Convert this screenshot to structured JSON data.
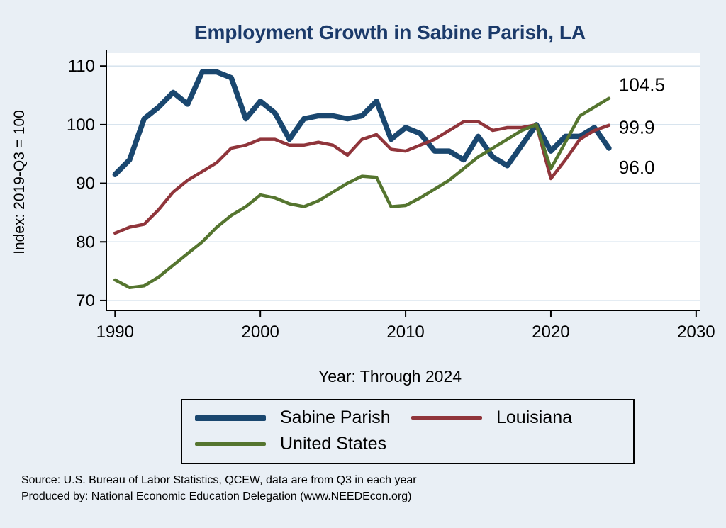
{
  "chart_data": {
    "type": "line",
    "title": "Employment Growth in Sabine Parish, LA",
    "ylabel": "Index: 2019-Q3 = 100",
    "xlabel": "Year: Through 2024",
    "grid": true,
    "legend_position": "bottom",
    "xlim": [
      1989.4,
      2030.3
    ],
    "ylim": [
      68.3,
      112.2
    ],
    "xticks": [
      1990,
      2000,
      2010,
      2020,
      2030
    ],
    "yticks": [
      70,
      80,
      90,
      100,
      110
    ],
    "x": [
      1990,
      1991,
      1992,
      1993,
      1994,
      1995,
      1996,
      1997,
      1998,
      1999,
      2000,
      2001,
      2002,
      2003,
      2004,
      2005,
      2006,
      2007,
      2008,
      2009,
      2010,
      2011,
      2012,
      2013,
      2014,
      2015,
      2016,
      2017,
      2018,
      2019,
      2020,
      2021,
      2022,
      2023,
      2024
    ],
    "series": [
      {
        "name": "Sabine Parish",
        "color": "#1a476f",
        "line_width": 7.5,
        "end_label": "96.0",
        "values": [
          91.5,
          94.0,
          101.0,
          103.0,
          105.5,
          103.5,
          109.0,
          109.0,
          108.0,
          101.0,
          104.0,
          102.0,
          97.5,
          101.0,
          101.5,
          101.5,
          101.0,
          101.5,
          104.0,
          97.5,
          99.5,
          98.5,
          95.5,
          95.5,
          94.0,
          98.0,
          94.5,
          93.0,
          96.5,
          100.0,
          95.5,
          98.0,
          98.0,
          99.5,
          96.0
        ]
      },
      {
        "name": "Louisiana",
        "color": "#90353b",
        "line_width": 4.5,
        "end_label": "99.9",
        "values": [
          81.5,
          82.5,
          83.0,
          85.5,
          88.5,
          90.5,
          92.0,
          93.5,
          96.0,
          96.5,
          97.5,
          97.5,
          96.5,
          96.5,
          97.0,
          96.5,
          94.8,
          97.5,
          98.3,
          95.8,
          95.5,
          96.5,
          97.5,
          99.0,
          100.5,
          100.5,
          99.0,
          99.5,
          99.5,
          100.0,
          90.8,
          94.0,
          97.5,
          99.0,
          99.9
        ]
      },
      {
        "name": "United States",
        "color": "#55752f",
        "line_width": 4.5,
        "end_label": "104.5",
        "values": [
          73.5,
          72.2,
          72.5,
          74.0,
          76.0,
          78.0,
          80.0,
          82.5,
          84.5,
          86.0,
          88.0,
          87.5,
          86.5,
          86.0,
          87.0,
          88.5,
          90.0,
          91.2,
          91.0,
          86.0,
          86.2,
          87.5,
          89.0,
          90.5,
          92.5,
          94.5,
          96.0,
          97.5,
          99.0,
          100.0,
          92.5,
          97.0,
          101.5,
          103.0,
          104.5
        ]
      }
    ]
  },
  "notes": {
    "source": "Source: U.S. Bureau of Labor Statistics, QCEW, data are from Q3 in each year",
    "produced": "Produced by: National Economic Education Delegation (www.NEEDEcon.org)"
  }
}
